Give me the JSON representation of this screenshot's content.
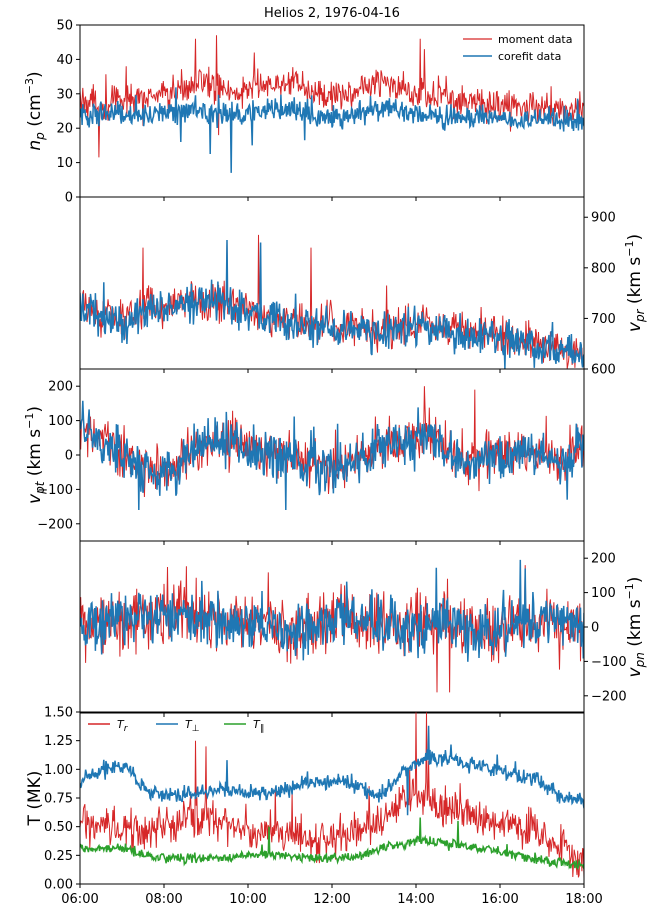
{
  "colors": {
    "moment": "#d62728",
    "corefit": "#1f77b4",
    "t_r": "#d62728",
    "t_perp": "#1f77b4",
    "t_par": "#2ca02c"
  },
  "chart_data": [
    {
      "type": "line",
      "id": "np",
      "title": "Helios 2, 1976-04-16",
      "ylabel": "n_p (cm^-3)",
      "ylabel_parts": {
        "base": "n",
        "sub": "p",
        "unit_pre": " (cm",
        "sup": "−3",
        "unit_post": ")"
      },
      "yaxis_side": "left",
      "ylim": [
        0,
        50
      ],
      "yticks": [
        "0",
        "10",
        "20",
        "30",
        "40",
        "50"
      ],
      "xlim_hours": [
        6,
        18
      ],
      "legend_position": "top-right",
      "series": [
        {
          "name": "moment data",
          "color_key": "moment",
          "base": [
            28,
            27,
            28,
            29,
            30,
            33,
            32,
            30,
            32,
            33,
            31,
            29,
            31,
            33,
            32,
            30,
            29,
            28,
            27,
            26,
            26,
            25,
            25
          ],
          "noise": 3.5,
          "spikes": [
            [
              7.1,
              38
            ],
            [
              8.75,
              46
            ],
            [
              9.25,
              47
            ],
            [
              10.15,
              42
            ],
            [
              14.1,
              46
            ],
            [
              14.2,
              43
            ],
            [
              6.45,
              11.5
            ],
            [
              9.3,
              18
            ],
            [
              16.25,
              19
            ]
          ]
        },
        {
          "name": "corefit data",
          "color_key": "corefit",
          "base": [
            24,
            24,
            24,
            24,
            25,
            25,
            24,
            24,
            25,
            26,
            24,
            23,
            24,
            26,
            25,
            24,
            23,
            23,
            23,
            22,
            22,
            22,
            22
          ],
          "noise": 2.5,
          "spikes": [
            [
              9.6,
              7
            ],
            [
              9.1,
              12.5
            ],
            [
              8.4,
              16
            ],
            [
              10.1,
              15
            ],
            [
              11.35,
              16.5
            ]
          ]
        }
      ]
    },
    {
      "type": "line",
      "id": "vpr",
      "ylabel": "v_pr (km s^-1)",
      "ylabel_parts": {
        "base": "v",
        "sub": "pr",
        "unit_pre": " (km s",
        "sup": "−1",
        "unit_post": ")"
      },
      "yaxis_side": "right",
      "ylim": [
        600,
        940
      ],
      "yticks": [
        "600",
        "700",
        "800",
        "900"
      ],
      "xlim_hours": [
        6,
        18
      ],
      "series": [
        {
          "name": "moment data",
          "color_key": "moment",
          "base": [
            720,
            710,
            700,
            720,
            730,
            740,
            735,
            720,
            710,
            700,
            690,
            690,
            680,
            670,
            680,
            690,
            680,
            670,
            670,
            660,
            655,
            640,
            630
          ],
          "noise": 28,
          "spikes": [
            [
              7.5,
              840
            ],
            [
              9.5,
              855
            ],
            [
              10.25,
              865
            ],
            [
              11.5,
              840
            ],
            [
              13.3,
              765
            ]
          ]
        },
        {
          "name": "corefit data",
          "color_key": "corefit",
          "base": [
            715,
            705,
            695,
            715,
            725,
            735,
            730,
            715,
            705,
            695,
            685,
            685,
            675,
            665,
            675,
            685,
            675,
            665,
            665,
            655,
            650,
            635,
            625
          ],
          "noise": 28,
          "spikes": [
            [
              9.5,
              855
            ],
            [
              10.3,
              850
            ]
          ]
        }
      ]
    },
    {
      "type": "line",
      "id": "vpt",
      "ylabel": "v_pt (km s^-1)",
      "ylabel_parts": {
        "base": "v",
        "sub": "pt",
        "unit_pre": " (km s",
        "sup": "−1",
        "unit_post": ")"
      },
      "yaxis_side": "left",
      "ylim": [
        -250,
        250
      ],
      "yticks": [
        "−200",
        "−100",
        "0",
        "100",
        "200"
      ],
      "xlim_hours": [
        6,
        18
      ],
      "series": [
        {
          "name": "moment data",
          "color_key": "moment",
          "base": [
            80,
            40,
            0,
            -40,
            -50,
            20,
            40,
            30,
            10,
            0,
            -20,
            -40,
            -10,
            30,
            40,
            60,
            20,
            -20,
            0,
            10,
            0,
            -20,
            40
          ],
          "noise": 50,
          "spikes": [
            [
              14.2,
              200
            ],
            [
              15.4,
              190
            ]
          ]
        },
        {
          "name": "corefit data",
          "color_key": "corefit",
          "base": [
            75,
            35,
            -5,
            -45,
            -55,
            15,
            35,
            25,
            5,
            -5,
            -25,
            -45,
            -15,
            25,
            35,
            55,
            15,
            -25,
            -5,
            5,
            -5,
            -25,
            35
          ],
          "noise": 50,
          "spikes": [
            [
              7.4,
              -160
            ],
            [
              10.9,
              -160
            ],
            [
              17.6,
              -130
            ]
          ]
        }
      ]
    },
    {
      "type": "line",
      "id": "vpn",
      "ylabel": "v_pn (km s^-1)",
      "ylabel_parts": {
        "base": "v",
        "sub": "pn",
        "unit_pre": " (km s",
        "sup": "−1",
        "unit_post": ")"
      },
      "yaxis_side": "right",
      "ylim": [
        -250,
        250
      ],
      "yticks": [
        "−200",
        "−100",
        "0",
        "100",
        "200"
      ],
      "xlim_hours": [
        6,
        18
      ],
      "series": [
        {
          "name": "moment data",
          "color_key": "moment",
          "base": [
            0,
            10,
            20,
            30,
            40,
            30,
            20,
            10,
            0,
            -20,
            0,
            20,
            30,
            10,
            0,
            10,
            20,
            0,
            -10,
            10,
            20,
            10,
            0
          ],
          "noise": 65,
          "spikes": [
            [
              16.6,
              180
            ],
            [
              14.5,
              -190
            ],
            [
              14.8,
              -190
            ]
          ]
        },
        {
          "name": "corefit data",
          "color_key": "corefit",
          "base": [
            0,
            10,
            20,
            30,
            40,
            30,
            20,
            10,
            0,
            -20,
            0,
            20,
            30,
            10,
            0,
            10,
            20,
            0,
            -10,
            10,
            20,
            10,
            0
          ],
          "noise": 62,
          "spikes": [
            [
              16.6,
              170
            ]
          ]
        }
      ]
    },
    {
      "type": "line",
      "id": "temp",
      "ylabel": "T (MK)",
      "ylabel_parts": {
        "base": "T (MK)",
        "sub": "",
        "unit_pre": "",
        "sup": "",
        "unit_post": ""
      },
      "yaxis_side": "left",
      "ylim": [
        0,
        1.5
      ],
      "yticks": [
        "0.00",
        "0.25",
        "0.50",
        "0.75",
        "1.00",
        "1.25",
        "1.50"
      ],
      "xlim_hours": [
        6,
        18
      ],
      "xticks": [
        "06:00",
        "08:00",
        "10:00",
        "12:00",
        "14:00",
        "16:00",
        "18:00"
      ],
      "legend_position": "top-left",
      "series": [
        {
          "name": "T_r",
          "color_key": "t_r",
          "legend_base": "T",
          "legend_sub": "r",
          "base": [
            0.55,
            0.5,
            0.45,
            0.48,
            0.55,
            0.6,
            0.55,
            0.5,
            0.45,
            0.45,
            0.42,
            0.4,
            0.45,
            0.55,
            0.75,
            0.8,
            0.65,
            0.6,
            0.55,
            0.5,
            0.45,
            0.3,
            0.22
          ],
          "noise": 0.13,
          "spikes": [
            [
              14.0,
              1.5
            ],
            [
              14.25,
              1.5
            ],
            [
              8.75,
              1.25
            ],
            [
              9.0,
              1.2
            ]
          ]
        },
        {
          "name": "T_⊥",
          "color_key": "t_perp",
          "legend_base": "T",
          "legend_sub": "⊥",
          "base": [
            0.9,
            1.0,
            1.02,
            0.8,
            0.78,
            0.78,
            0.82,
            0.8,
            0.78,
            0.82,
            0.88,
            0.9,
            0.88,
            0.75,
            0.95,
            1.1,
            1.1,
            1.05,
            1.0,
            0.95,
            0.9,
            0.75,
            0.72
          ],
          "noise": 0.05,
          "spikes": [
            [
              14.3,
              1.38
            ],
            [
              9.5,
              1.08
            ],
            [
              13.8,
              0.6
            ]
          ]
        },
        {
          "name": "T_∥",
          "color_key": "t_par",
          "legend_base": "T",
          "legend_sub": "∥",
          "base": [
            0.3,
            0.32,
            0.3,
            0.24,
            0.22,
            0.22,
            0.22,
            0.24,
            0.26,
            0.25,
            0.24,
            0.23,
            0.24,
            0.3,
            0.35,
            0.38,
            0.35,
            0.32,
            0.3,
            0.25,
            0.22,
            0.18,
            0.17
          ],
          "noise": 0.03,
          "spikes": [
            [
              14.1,
              0.58
            ],
            [
              15.0,
              0.55
            ],
            [
              10.5,
              0.5
            ]
          ]
        }
      ]
    }
  ]
}
